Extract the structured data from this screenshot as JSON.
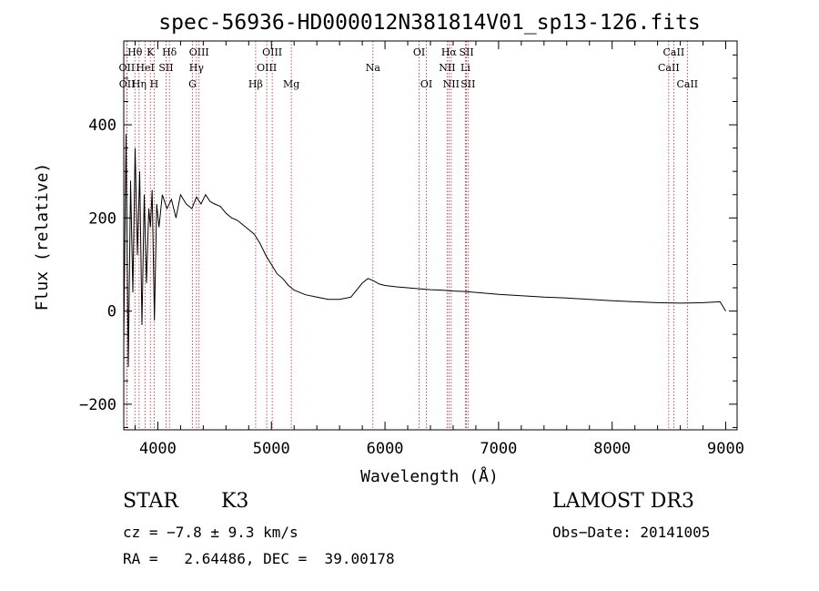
{
  "chart_data": {
    "type": "line",
    "title": "spec-56936-HD000012N381814V01_sp13-126.fits",
    "xlabel": "Wavelength (Å)",
    "ylabel": "Flux (relative)",
    "xlim": [
      3700,
      9100
    ],
    "ylim": [
      -255,
      580
    ],
    "x_ticks": [
      4000,
      5000,
      6000,
      7000,
      8000,
      9000
    ],
    "y_ticks": [
      -200,
      0,
      200,
      400
    ],
    "series": [
      {
        "name": "flux",
        "x": [
          3700,
          3720,
          3740,
          3760,
          3780,
          3800,
          3820,
          3840,
          3860,
          3880,
          3900,
          3920,
          3935,
          3950,
          3970,
          3990,
          4010,
          4040,
          4080,
          4120,
          4160,
          4200,
          4250,
          4300,
          4340,
          4380,
          4420,
          4460,
          4500,
          4550,
          4600,
          4650,
          4700,
          4750,
          4800,
          4850,
          4900,
          4950,
          5000,
          5050,
          5100,
          5150,
          5200,
          5300,
          5400,
          5500,
          5600,
          5700,
          5750,
          5800,
          5850,
          5900,
          5950,
          6000,
          6100,
          6200,
          6300,
          6400,
          6500,
          6600,
          6700,
          6800,
          7000,
          7200,
          7400,
          7600,
          7800,
          8000,
          8200,
          8400,
          8600,
          8800,
          8950,
          9000
        ],
        "y": [
          -70,
          380,
          -120,
          280,
          40,
          350,
          120,
          300,
          -30,
          250,
          60,
          220,
          180,
          260,
          -20,
          230,
          180,
          250,
          220,
          240,
          200,
          250,
          230,
          220,
          245,
          230,
          250,
          235,
          230,
          225,
          210,
          200,
          195,
          185,
          175,
          165,
          145,
          120,
          100,
          80,
          70,
          55,
          45,
          35,
          30,
          25,
          25,
          30,
          45,
          60,
          70,
          65,
          58,
          55,
          52,
          50,
          48,
          46,
          45,
          43,
          42,
          40,
          36,
          33,
          30,
          28,
          25,
          22,
          20,
          18,
          17,
          18,
          20,
          0
        ]
      }
    ],
    "lines": [
      {
        "name": "OII",
        "wave": 3727,
        "row": 2
      },
      {
        "name": "OII",
        "wave": 3729,
        "row": 3
      },
      {
        "name": "Hθ",
        "wave": 3798,
        "row": 1
      },
      {
        "name": "Hη",
        "wave": 3835,
        "row": 3
      },
      {
        "name": "HeI",
        "wave": 3889,
        "row": 2
      },
      {
        "name": "K",
        "wave": 3934,
        "row": 1
      },
      {
        "name": "SII",
        "wave": 4072,
        "row": 2
      },
      {
        "name": "H",
        "wave": 3968,
        "row": 3
      },
      {
        "name": "Hδ",
        "wave": 4102,
        "row": 1
      },
      {
        "name": "OIII",
        "wave": 4363,
        "row": 1
      },
      {
        "name": "Hγ",
        "wave": 4340,
        "row": 2
      },
      {
        "name": "G",
        "wave": 4305,
        "row": 3
      },
      {
        "name": "Hβ",
        "wave": 4861,
        "row": 3
      },
      {
        "name": "OIII",
        "wave": 5007,
        "row": 1
      },
      {
        "name": "OIII",
        "wave": 4959,
        "row": 2
      },
      {
        "name": "Mg",
        "wave": 5175,
        "row": 3
      },
      {
        "name": "Na",
        "wave": 5894,
        "row": 2
      },
      {
        "name": "OI",
        "wave": 6300,
        "row": 1
      },
      {
        "name": "OI",
        "wave": 6364,
        "row": 3
      },
      {
        "name": "Hα",
        "wave": 6563,
        "row": 1
      },
      {
        "name": "NII",
        "wave": 6548,
        "row": 2
      },
      {
        "name": "NII",
        "wave": 6583,
        "row": 3
      },
      {
        "name": "SII",
        "wave": 6717,
        "row": 1
      },
      {
        "name": "Li",
        "wave": 6708,
        "row": 2
      },
      {
        "name": "SII",
        "wave": 6731,
        "row": 3
      },
      {
        "name": "CaII",
        "wave": 8542,
        "row": 1
      },
      {
        "name": "CaII",
        "wave": 8498,
        "row": 2
      },
      {
        "name": "CaII",
        "wave": 8662,
        "row": 3
      }
    ],
    "line_color": "#cc2222"
  },
  "info": {
    "object_class": "STAR",
    "subclass": "K3",
    "survey": "LAMOST DR3",
    "cz": "cz = −7.8 ± 9.3 km/s",
    "obs_date": "Obs−Date: 20141005",
    "coords": "RA =   2.64486, DEC =  39.00178"
  }
}
